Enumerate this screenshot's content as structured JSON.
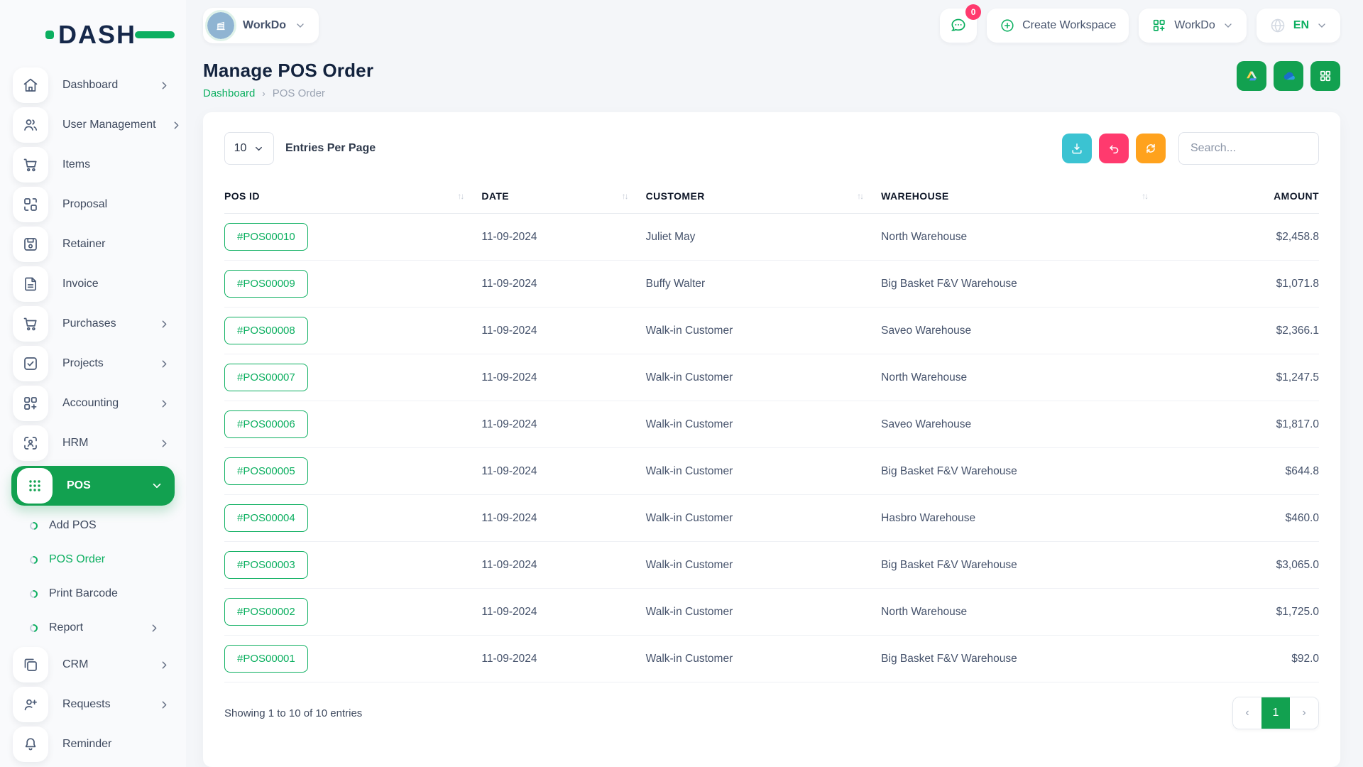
{
  "brand": {
    "name": "DASH"
  },
  "topbar": {
    "workspace_label": "WorkDo",
    "messages_badge": "0",
    "create_workspace_label": "Create Workspace",
    "workspace_menu_label": "WorkDo",
    "language_label": "EN"
  },
  "page": {
    "title": "Manage POS Order",
    "breadcrumb_home": "Dashboard",
    "breadcrumb_separator": "›",
    "breadcrumb_current": "POS Order"
  },
  "sidebar": {
    "sections": [
      {
        "type": "item",
        "label": "Dashboard",
        "icon": "home-icon",
        "chevron": "right"
      },
      {
        "type": "item",
        "label": "User Management",
        "icon": "users-icon",
        "chevron": "right"
      },
      {
        "type": "item",
        "label": "Items",
        "icon": "cart-icon",
        "chevron": null
      },
      {
        "type": "item",
        "label": "Proposal",
        "icon": "proposal-icon",
        "chevron": null
      },
      {
        "type": "item",
        "label": "Retainer",
        "icon": "retainer-icon",
        "chevron": null
      },
      {
        "type": "item",
        "label": "Invoice",
        "icon": "invoice-icon",
        "chevron": null
      },
      {
        "type": "item",
        "label": "Purchases",
        "icon": "cart-icon",
        "chevron": "right"
      },
      {
        "type": "item",
        "label": "Projects",
        "icon": "projects-icon",
        "chevron": "right"
      },
      {
        "type": "item",
        "label": "Accounting",
        "icon": "accounting-icon",
        "chevron": "right"
      },
      {
        "type": "item",
        "label": "HRM",
        "icon": "hrm-icon",
        "chevron": "right"
      },
      {
        "type": "item",
        "label": "POS",
        "icon": "pos-grid-icon",
        "chevron": "down",
        "active": true
      },
      {
        "type": "sub",
        "label": "Add POS",
        "chevron": null
      },
      {
        "type": "sub",
        "label": "POS Order",
        "chevron": null,
        "active": true
      },
      {
        "type": "sub",
        "label": "Print Barcode",
        "chevron": null
      },
      {
        "type": "sub",
        "label": "Report",
        "chevron": "right"
      },
      {
        "type": "item",
        "label": "CRM",
        "icon": "crm-icon",
        "chevron": "right"
      },
      {
        "type": "item",
        "label": "Requests",
        "icon": "user-plus-icon",
        "chevron": "right"
      },
      {
        "type": "item",
        "label": "Reminder",
        "icon": "bell-icon",
        "chevron": null
      }
    ]
  },
  "integrations": [
    {
      "icon": "google-drive-icon"
    },
    {
      "icon": "onedrive-icon"
    },
    {
      "icon": "grid-icon"
    }
  ],
  "toolbar": {
    "entries_value": "10",
    "entries_label": "Entries Per Page",
    "search_placeholder": "Search...",
    "buttons": [
      {
        "icon": "download-icon",
        "color": "#3BC3D2"
      },
      {
        "icon": "undo-icon",
        "color": "#FF3A6E"
      },
      {
        "icon": "refresh-icon",
        "color": "#FFA21D"
      }
    ]
  },
  "table": {
    "headers": [
      "POS ID",
      "DATE",
      "CUSTOMER",
      "WAREHOUSE",
      "AMOUNT"
    ],
    "sort_glyph": "↑↓",
    "rows": [
      {
        "pos_id": "#POS00010",
        "date": "11-09-2024",
        "customer": "Juliet May",
        "warehouse": "North Warehouse",
        "amount": "$2,458.8"
      },
      {
        "pos_id": "#POS00009",
        "date": "11-09-2024",
        "customer": "Buffy Walter",
        "warehouse": "Big Basket F&V Warehouse",
        "amount": "$1,071.8"
      },
      {
        "pos_id": "#POS00008",
        "date": "11-09-2024",
        "customer": "Walk-in Customer",
        "warehouse": "Saveo Warehouse",
        "amount": "$2,366.1"
      },
      {
        "pos_id": "#POS00007",
        "date": "11-09-2024",
        "customer": "Walk-in Customer",
        "warehouse": "North Warehouse",
        "amount": "$1,247.5"
      },
      {
        "pos_id": "#POS00006",
        "date": "11-09-2024",
        "customer": "Walk-in Customer",
        "warehouse": "Saveo Warehouse",
        "amount": "$1,817.0"
      },
      {
        "pos_id": "#POS00005",
        "date": "11-09-2024",
        "customer": "Walk-in Customer",
        "warehouse": "Big Basket F&V Warehouse",
        "amount": "$644.8"
      },
      {
        "pos_id": "#POS00004",
        "date": "11-09-2024",
        "customer": "Walk-in Customer",
        "warehouse": "Hasbro Warehouse",
        "amount": "$460.0"
      },
      {
        "pos_id": "#POS00003",
        "date": "11-09-2024",
        "customer": "Walk-in Customer",
        "warehouse": "Big Basket F&V Warehouse",
        "amount": "$3,065.0"
      },
      {
        "pos_id": "#POS00002",
        "date": "11-09-2024",
        "customer": "Walk-in Customer",
        "warehouse": "North Warehouse",
        "amount": "$1,725.0"
      },
      {
        "pos_id": "#POS00001",
        "date": "11-09-2024",
        "customer": "Walk-in Customer",
        "warehouse": "Big Basket F&V Warehouse",
        "amount": "$92.0"
      }
    ]
  },
  "footer": {
    "showing_text": "Showing 1 to 10 of 10 entries",
    "prev_glyph": "‹",
    "current_page": "1",
    "next_glyph": "›"
  },
  "colors": {
    "accent_green": "#0CAF60",
    "active_green": "#12A150",
    "teal": "#3BC3D2",
    "pink": "#FF3A6E",
    "orange": "#FFA21D",
    "navy": "#13233E"
  }
}
